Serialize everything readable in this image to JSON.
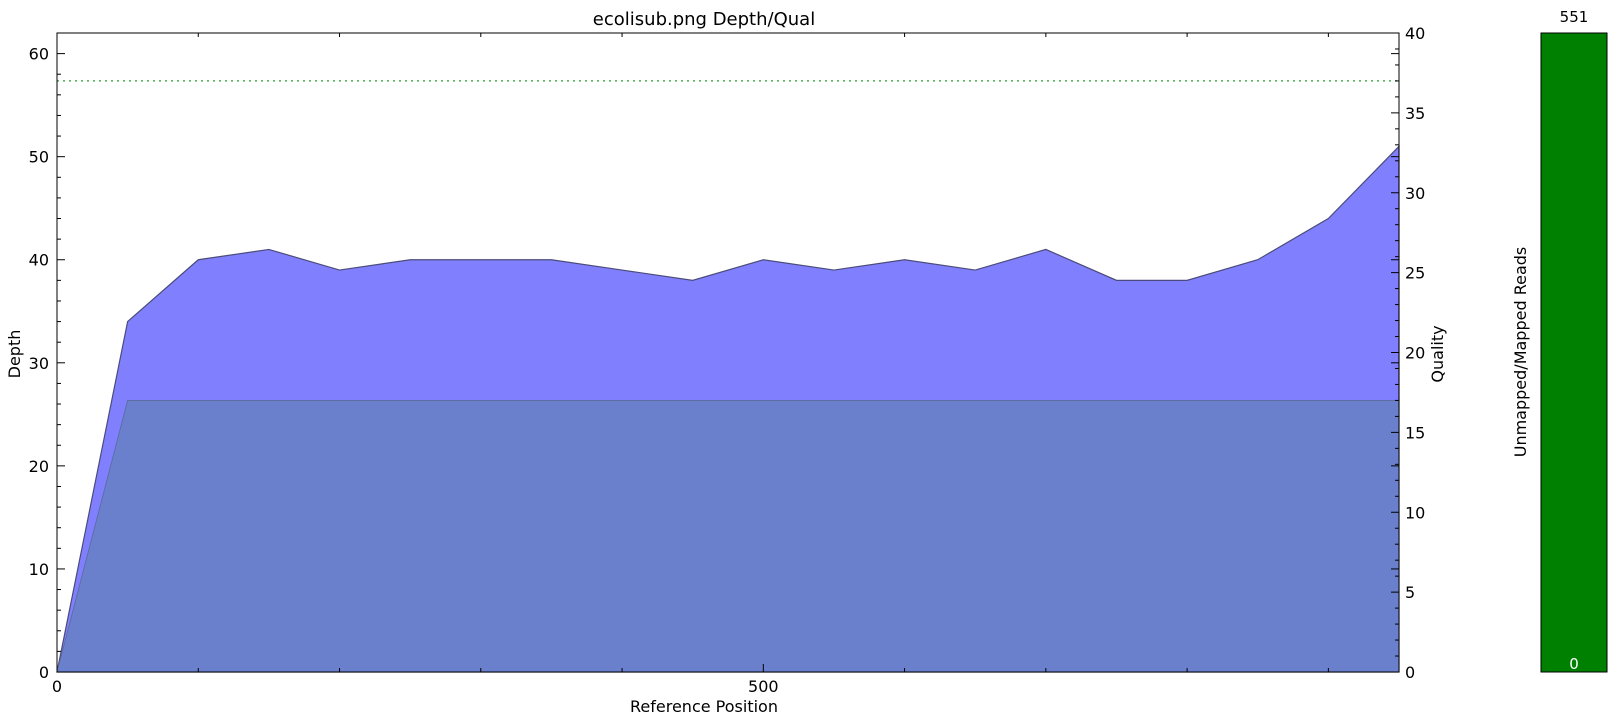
{
  "chart_data": [
    {
      "type": "area",
      "title": "ecolisub.png Depth/Qual",
      "xlabel": "Reference Position",
      "ylabel": "Depth",
      "y2label": "Quality",
      "xlim": [
        0,
        950
      ],
      "ylim": [
        0,
        62
      ],
      "y2lim": [
        0,
        40
      ],
      "xticks": [
        0,
        500
      ],
      "yticks": [
        0,
        10,
        20,
        30,
        40,
        50,
        60
      ],
      "y2ticks": [
        0,
        5,
        10,
        15,
        20,
        25,
        30,
        35,
        40
      ],
      "grid": false,
      "x": [
        0,
        50,
        100,
        150,
        200,
        250,
        300,
        350,
        400,
        450,
        500,
        550,
        600,
        650,
        700,
        750,
        800,
        850,
        900,
        950
      ],
      "series": [
        {
          "axis": "left",
          "color": "#8080ff",
          "values": [
            0,
            34,
            40,
            41,
            39,
            40,
            40,
            40,
            39,
            38,
            40,
            39,
            40,
            39,
            41,
            38,
            38,
            40,
            44,
            51
          ]
        },
        {
          "axis": "right",
          "color": "#6a80cc",
          "values": [
            0,
            17,
            17,
            17,
            17,
            17,
            17,
            17,
            17,
            17,
            17,
            17,
            17,
            17,
            17,
            17,
            17,
            17,
            17,
            17
          ]
        }
      ],
      "reference_line": {
        "axis": "right",
        "value": 37,
        "color": "#4caf50",
        "style": "dotted"
      }
    },
    {
      "type": "bar",
      "ylabel": "Unmapped/Mapped Reads",
      "mapped_reads": 551,
      "unmapped_reads": 0,
      "top_label": "551",
      "bottom_label": "0",
      "color": "#008000"
    }
  ]
}
